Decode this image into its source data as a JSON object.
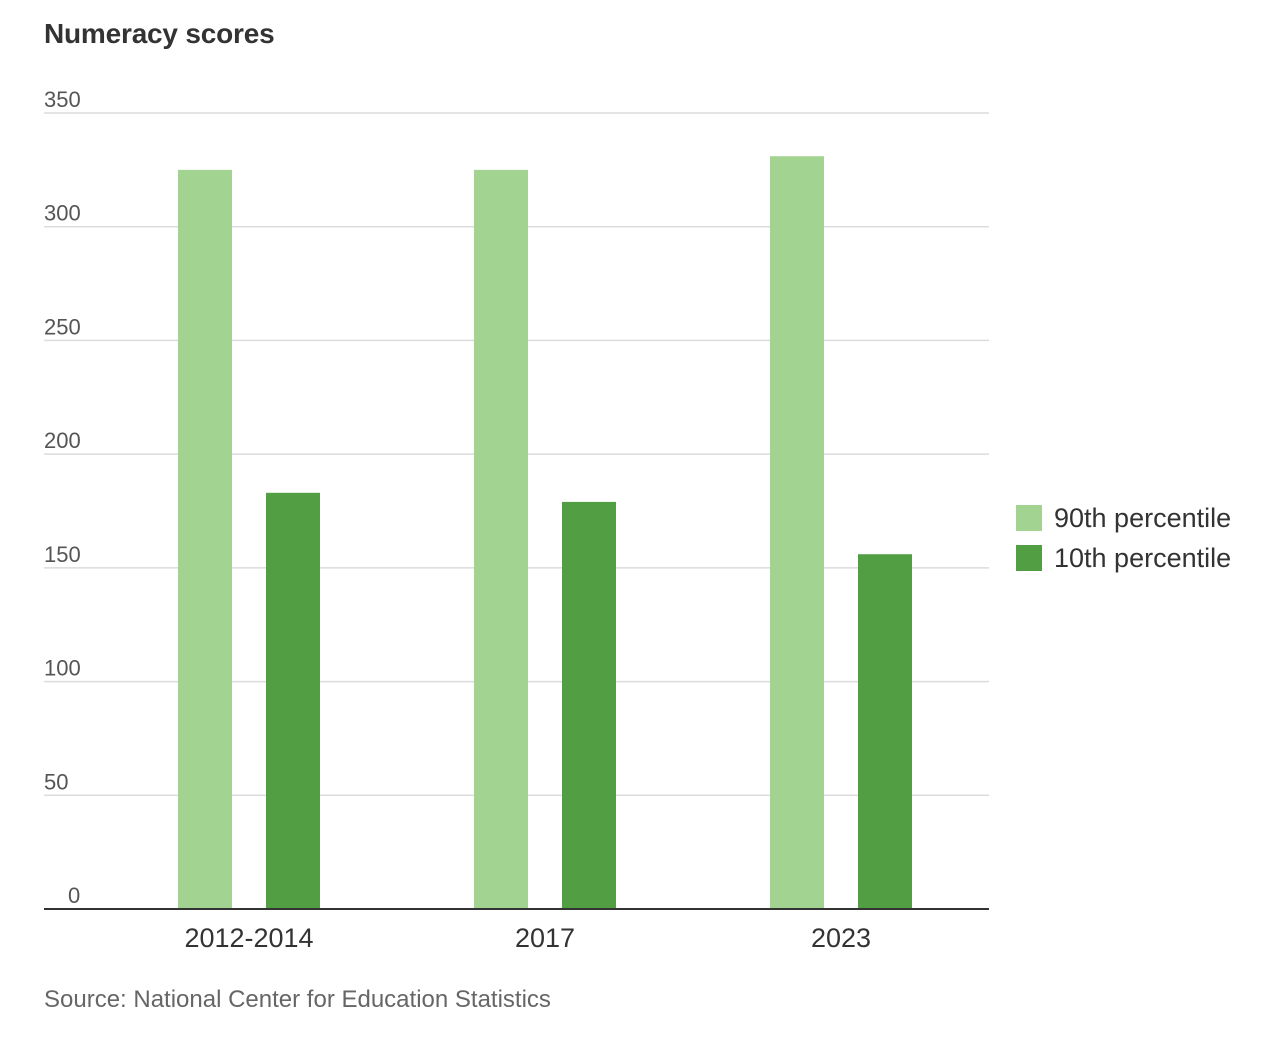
{
  "chart_data": {
    "type": "bar",
    "title": "Numeracy scores",
    "categories": [
      "2012-2014",
      "2017",
      "2023"
    ],
    "series": [
      {
        "name": "90th percentile",
        "values": [
          325,
          325,
          331
        ],
        "color": "#a2d391"
      },
      {
        "name": "10th percentile",
        "values": [
          183,
          179,
          156
        ],
        "color": "#529f43"
      }
    ],
    "ylim": [
      0,
      350
    ],
    "yticks": [
      0,
      50,
      100,
      150,
      200,
      250,
      300,
      350
    ],
    "grid": true,
    "legend_position": "right",
    "source": "Source: National Center for Education Statistics"
  }
}
